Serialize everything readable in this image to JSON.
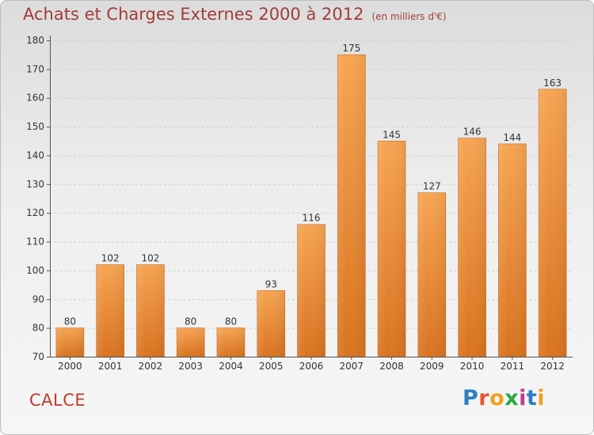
{
  "title": "Achats et Charges Externes 2000 à 2012",
  "subtitle": "(en milliers d'€)",
  "commune": "CALCE",
  "logo": {
    "letters": [
      "P",
      "r",
      "o",
      "x",
      "i",
      "t",
      "i"
    ],
    "colors": [
      "#2a7fc2",
      "#e8542a",
      "#f0a020",
      "#2aa843",
      "#c13b8e",
      "#2a7fc2",
      "#f0a020"
    ]
  },
  "chart_data": {
    "type": "bar",
    "categories": [
      "2000",
      "2001",
      "2002",
      "2003",
      "2004",
      "2005",
      "2006",
      "2007",
      "2008",
      "2009",
      "2010",
      "2011",
      "2012"
    ],
    "values": [
      80,
      102,
      102,
      80,
      80,
      93,
      116,
      175,
      145,
      127,
      146,
      144,
      163
    ],
    "ylim": [
      70,
      180
    ],
    "yticks": [
      70,
      80,
      90,
      100,
      110,
      120,
      130,
      140,
      150,
      160,
      170,
      180
    ],
    "grid": true,
    "bar_color_top": "#f6a452",
    "bar_color_bottom": "#d97320",
    "title": "Achats et Charges Externes 2000 à 2012",
    "subtitle": "(en milliers d'€)"
  }
}
